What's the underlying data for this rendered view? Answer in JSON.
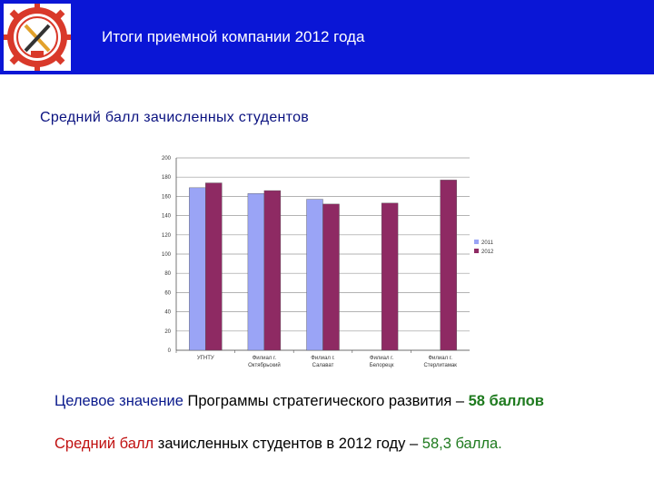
{
  "header": {
    "title": "Итоги приемной компании 2012 года",
    "bg_color": "#0a16d6"
  },
  "subtitle": "Средний балл зачисленных студентов",
  "chart_data": {
    "type": "bar",
    "categories": [
      "УГНТУ",
      "Филиал г. Октябрьский",
      "Филиал г. Салават",
      "Филиал г. Белорецк",
      "Филиал г. Стерлитамак"
    ],
    "series": [
      {
        "name": "2011",
        "color": "#9aa4f6",
        "values": [
          169,
          163,
          157,
          null,
          null
        ]
      },
      {
        "name": "2012",
        "color": "#8e2a63",
        "values": [
          174,
          166,
          152,
          153,
          177
        ]
      }
    ],
    "ylim": [
      0,
      200
    ],
    "yticks": [
      0,
      20,
      40,
      60,
      80,
      100,
      120,
      140,
      160,
      180,
      200
    ],
    "xlabel": "",
    "ylabel": "",
    "grid": true,
    "legend": "right"
  },
  "target_line": {
    "part1": "Целевое значение",
    "part2": " Программы стратегического развития – ",
    "value": "58 баллов"
  },
  "actual_line": {
    "part1": "Средний балл",
    "part2": " зачисленных студентов в 2012 году – ",
    "value": "58,3 балла."
  }
}
